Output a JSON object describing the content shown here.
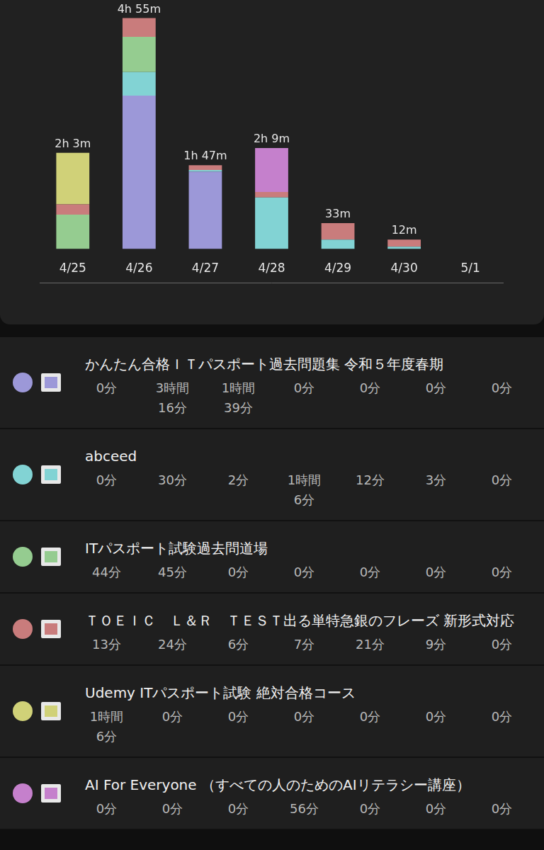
{
  "chart_data": {
    "type": "bar",
    "stacked": true,
    "grid": false,
    "tick_labels": "x",
    "categories": [
      "4/25",
      "4/26",
      "4/27",
      "4/28",
      "4/29",
      "4/30",
      "5/1"
    ],
    "ylim": [
      0,
      300
    ],
    "total_labels": [
      "2h 3m",
      "4h 55m",
      "1h 47m",
      "2h 9m",
      "33m",
      "12m",
      null
    ],
    "series": [
      {
        "name": "かんたん合格ＩＴパスポート過去問題集 令和５年度春期",
        "color": "#9c98d8",
        "values": [
          0,
          196,
          99,
          0,
          0,
          0,
          0
        ],
        "value_labels": [
          "0分",
          "3時間16分",
          "1時間39分",
          "0分",
          "0分",
          "0分",
          "0分"
        ]
      },
      {
        "name": "abceed",
        "color": "#82d3d4",
        "values": [
          0,
          30,
          2,
          66,
          12,
          3,
          0
        ],
        "value_labels": [
          "0分",
          "30分",
          "2分",
          "1時間6分",
          "12分",
          "3分",
          "0分"
        ]
      },
      {
        "name": "ITパスポート試験過去問道場",
        "color": "#95cc90",
        "values": [
          44,
          45,
          0,
          0,
          0,
          0,
          0
        ],
        "value_labels": [
          "44分",
          "45分",
          "0分",
          "0分",
          "0分",
          "0分",
          "0分"
        ]
      },
      {
        "name": "ＴＯＥＩＣ　Ｌ＆Ｒ　ＴＥＳＴ出る単特急銀のフレーズ 新形式対応",
        "color": "#c97c7c",
        "values": [
          13,
          24,
          6,
          7,
          21,
          9,
          0
        ],
        "value_labels": [
          "13分",
          "24分",
          "6分",
          "7分",
          "21分",
          "9分",
          "0分"
        ]
      },
      {
        "name": "Udemy ITパスポート試験 絶対合格コース",
        "color": "#d0d178",
        "values": [
          66,
          0,
          0,
          0,
          0,
          0,
          0
        ],
        "value_labels": [
          "1時間6分",
          "0分",
          "0分",
          "0分",
          "0分",
          "0分",
          "0分"
        ]
      },
      {
        "name": "AI For Everyone （すべての人のためのAIリテラシー講座）",
        "color": "#c580cc",
        "values": [
          0,
          0,
          0,
          56,
          0,
          0,
          0
        ],
        "value_labels": [
          "0分",
          "0分",
          "0分",
          "56分",
          "0分",
          "0分",
          "0分"
        ]
      }
    ]
  }
}
